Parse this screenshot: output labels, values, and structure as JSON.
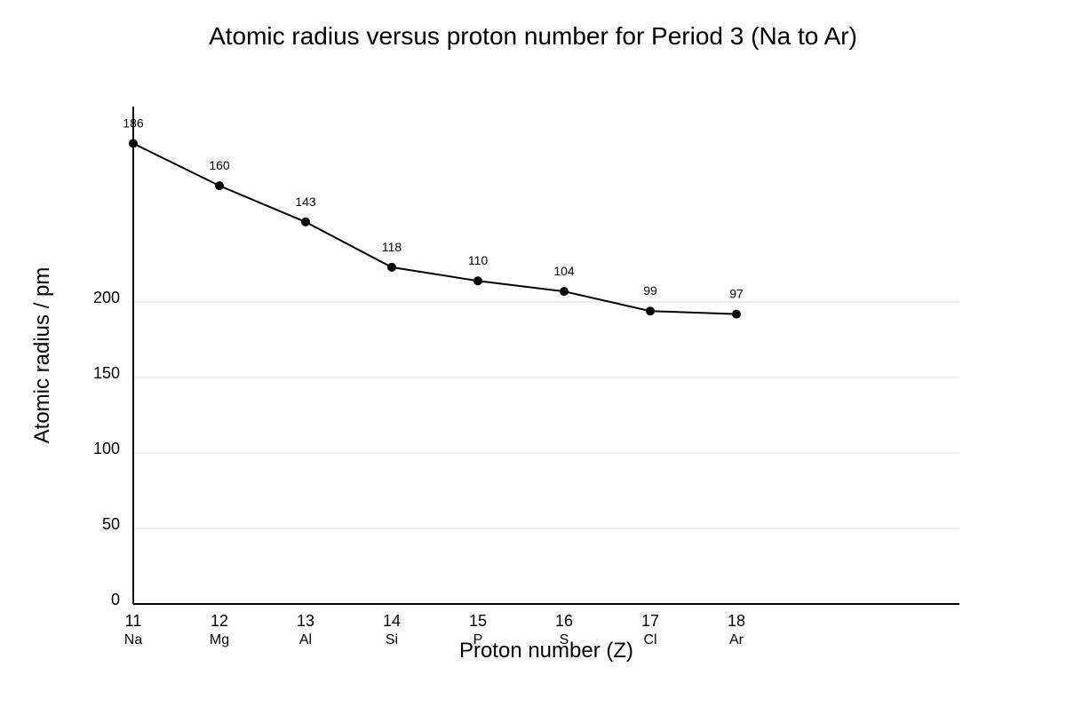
{
  "chart_data": {
    "type": "line",
    "title": "Atomic radius versus proton number for Period 3 (Na to Ar)",
    "xlabel": "Proton number (Z)",
    "ylabel": "Atomic radius / pm",
    "x": [
      11,
      12,
      13,
      14,
      15,
      16,
      17,
      18
    ],
    "x_sublabels": [
      "Na",
      "Mg",
      "Al",
      "Si",
      "P",
      "S",
      "Cl",
      "Ar"
    ],
    "series": [
      {
        "values": [
          186,
          160,
          143,
          118,
          110,
          104,
          99,
          97
        ]
      }
    ],
    "point_positions_values": [
      305,
      277,
      253,
      223,
      214,
      207,
      194,
      192
    ],
    "y_ticks": [
      0,
      50,
      100,
      150,
      200
    ],
    "ylim": [
      0,
      330
    ],
    "grid": true,
    "legend": "none",
    "colors": {
      "line": "#000000",
      "grid": "#d9d9d9",
      "axis": "#000000"
    }
  }
}
